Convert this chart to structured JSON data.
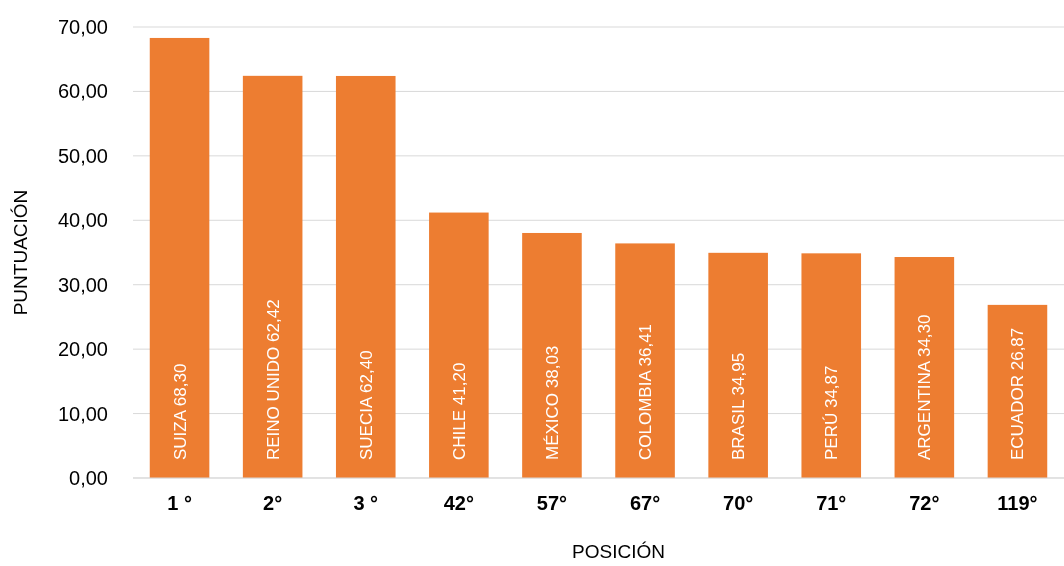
{
  "chart_data": {
    "type": "bar",
    "xlabel": "POSICIÓN",
    "ylabel": "PUNTUACIÓN",
    "categories": [
      "1 °",
      "2°",
      "3 °",
      "42°",
      "57°",
      "67°",
      "70°",
      "71°",
      "72°",
      "119°"
    ],
    "values": [
      68.3,
      62.42,
      62.4,
      41.2,
      38.03,
      36.41,
      34.95,
      34.87,
      34.3,
      26.87
    ],
    "value_labels": [
      "SUIZA 68,30",
      "REINO UNIDO 62,42",
      "SUECIA 62,40",
      "CHILE 41,20",
      "MÉXICO 38,03",
      "COLOMBIA 36,41",
      "BRASIL 34,95",
      "PERÚ 34,87",
      "ARGENTINA 34,30",
      "ECUADOR 26,87"
    ],
    "color": "#ed7d31",
    "ylim": [
      0,
      70
    ],
    "yticks": [
      {
        "value": 0,
        "label": "0,00"
      },
      {
        "value": 10,
        "label": "10,00"
      },
      {
        "value": 20,
        "label": "20,00"
      },
      {
        "value": 30,
        "label": "30,00"
      },
      {
        "value": 40,
        "label": "40,00"
      },
      {
        "value": 50,
        "label": "50,00"
      },
      {
        "value": 60,
        "label": "60,00"
      },
      {
        "value": 70,
        "label": "70,00"
      }
    ],
    "grid": "y"
  }
}
